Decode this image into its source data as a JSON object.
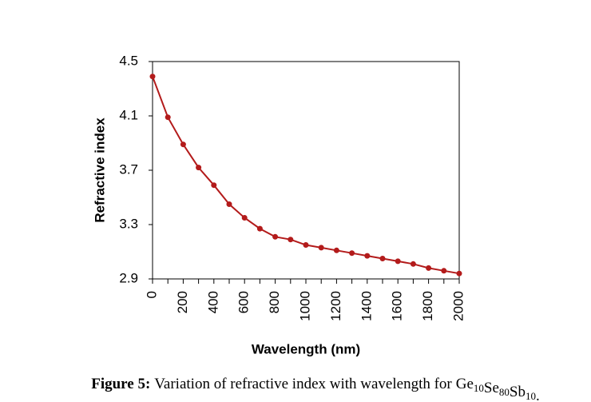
{
  "chart_data": {
    "type": "line",
    "xlabel": "Wavelength (nm)",
    "ylabel": "Refractive index",
    "x": [
      0,
      100,
      200,
      300,
      400,
      500,
      600,
      700,
      800,
      900,
      1000,
      1100,
      1200,
      1300,
      1400,
      1500,
      1600,
      1700,
      1800,
      1900,
      2000
    ],
    "series": [
      {
        "name": "Refractive index",
        "color": "#b31b1b",
        "values": [
          4.39,
          4.09,
          3.89,
          3.72,
          3.59,
          3.45,
          3.35,
          3.27,
          3.21,
          3.19,
          3.15,
          3.13,
          3.11,
          3.09,
          3.07,
          3.05,
          3.03,
          3.01,
          2.98,
          2.96,
          2.94
        ]
      }
    ],
    "xlim": [
      0,
      2000
    ],
    "xticks": [
      0,
      200,
      400,
      600,
      800,
      1000,
      1200,
      1400,
      1600,
      1800,
      2000
    ],
    "x_minor_ticks": [
      100,
      300,
      500,
      700,
      900,
      1100,
      1300,
      1500,
      1700,
      1900
    ],
    "ylim": [
      2.9,
      4.5
    ],
    "yticks": [
      2.9,
      3.3,
      3.7,
      4.1,
      4.5
    ],
    "grid": false
  },
  "caption": {
    "label": "Figure 5:",
    "text": "Variation of refractive index with wavelength for",
    "formula": [
      {
        "element": "Ge",
        "sub": "10"
      },
      {
        "element": "Se",
        "sub": "80"
      },
      {
        "element": "Sb",
        "sub": "10"
      }
    ],
    "end": "."
  }
}
